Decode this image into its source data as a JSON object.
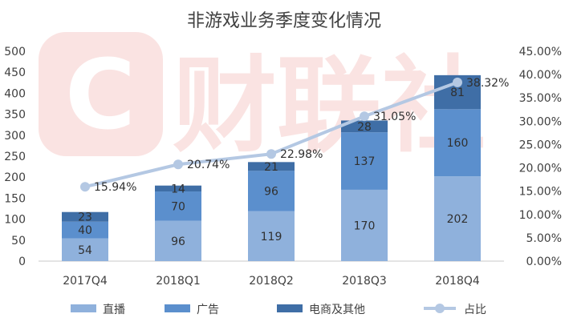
{
  "watermark": {
    "text": "财联社"
  },
  "chart_data": {
    "type": "bar",
    "stacked": true,
    "title": "非游戏业务季度变化情况",
    "categories": [
      "2017Q4",
      "2018Q1",
      "2018Q2",
      "2018Q3",
      "2018Q4"
    ],
    "series": [
      {
        "name": "直播",
        "type": "bar",
        "axis": "left",
        "color": "#8fb1dc",
        "values": [
          54,
          96,
          119,
          170,
          202
        ]
      },
      {
        "name": "广告",
        "type": "bar",
        "axis": "left",
        "color": "#5b8fcd",
        "values": [
          40,
          70,
          96,
          137,
          160
        ]
      },
      {
        "name": "电商及其他",
        "type": "bar",
        "axis": "left",
        "color": "#3f6ea6",
        "values": [
          23,
          14,
          21,
          28,
          81
        ]
      },
      {
        "name": "占比",
        "type": "line",
        "axis": "right",
        "color": "#b4c8e3",
        "values": [
          15.94,
          20.74,
          22.98,
          31.05,
          38.32
        ],
        "labels": [
          "15.94%",
          "20.74%",
          "22.98%",
          "31.05%",
          "38.32%"
        ]
      }
    ],
    "y_left": {
      "min": 0,
      "max": 500,
      "step": 50,
      "ticks": [
        "0",
        "50",
        "100",
        "150",
        "200",
        "250",
        "300",
        "350",
        "400",
        "450",
        "500"
      ]
    },
    "y_right": {
      "min": 0,
      "max": 45,
      "step": 5,
      "ticks": [
        "0.00%",
        "5.00%",
        "10.00%",
        "15.00%",
        "20.00%",
        "25.00%",
        "30.00%",
        "35.00%",
        "40.00%",
        "45.00%"
      ]
    },
    "grid": false,
    "legend_position": "bottom"
  }
}
